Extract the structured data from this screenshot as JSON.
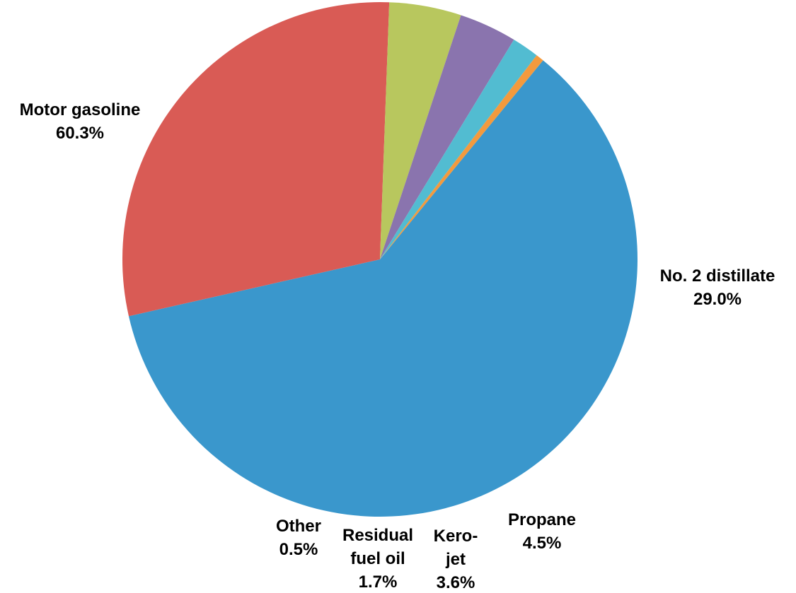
{
  "chart_data": {
    "type": "pie",
    "slices": [
      {
        "name": "Motor gasoline",
        "value": 60.3,
        "color": "#3A97CC",
        "label_lines": [
          "Motor gasoline"
        ],
        "value_label": "60.3%"
      },
      {
        "name": "No. 2 distillate",
        "value": 29.0,
        "color": "#D95B55",
        "label_lines": [
          "No. 2 distillate"
        ],
        "value_label": "29.0%"
      },
      {
        "name": "Propane",
        "value": 4.5,
        "color": "#B8C75E",
        "label_lines": [
          "Propane"
        ],
        "value_label": "4.5%"
      },
      {
        "name": "Kero-jet",
        "value": 3.6,
        "color": "#8A74AE",
        "label_lines": [
          "Kero-",
          "jet"
        ],
        "value_label": "3.6%"
      },
      {
        "name": "Residual fuel oil",
        "value": 1.7,
        "color": "#52BCD1",
        "label_lines": [
          "Residual",
          "fuel oil"
        ],
        "value_label": "1.7%"
      },
      {
        "name": "Other",
        "value": 0.5,
        "color": "#F39A3D",
        "label_lines": [
          "Other"
        ],
        "value_label": "0.5%"
      }
    ]
  }
}
